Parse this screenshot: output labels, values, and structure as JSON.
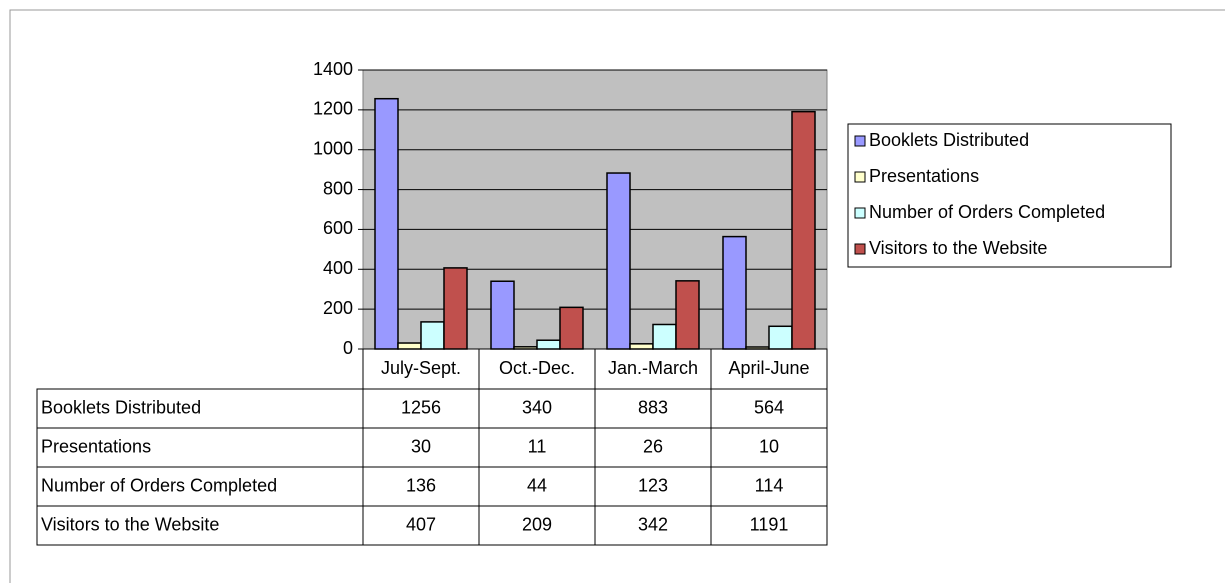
{
  "chart_data": {
    "type": "bar",
    "categories": [
      "July-Sept.",
      "Oct.-Dec.",
      "Jan.-March",
      "April-June"
    ],
    "series": [
      {
        "name": "Booklets Distributed",
        "color": "#9999ff",
        "values": [
          1256,
          340,
          883,
          564
        ]
      },
      {
        "name": "Presentations",
        "color": "#ffffcc",
        "values": [
          30,
          11,
          26,
          10
        ]
      },
      {
        "name": "Number of Orders Completed",
        "color": "#ccffff",
        "values": [
          136,
          44,
          123,
          114
        ]
      },
      {
        "name": "Visitors to the Website",
        "color": "#c0504d",
        "values": [
          407,
          209,
          342,
          1191
        ]
      }
    ],
    "ylim": [
      0,
      1400
    ],
    "yticks": [
      0,
      200,
      400,
      600,
      800,
      1000,
      1200,
      1400
    ],
    "grid": true,
    "legend": "right"
  }
}
